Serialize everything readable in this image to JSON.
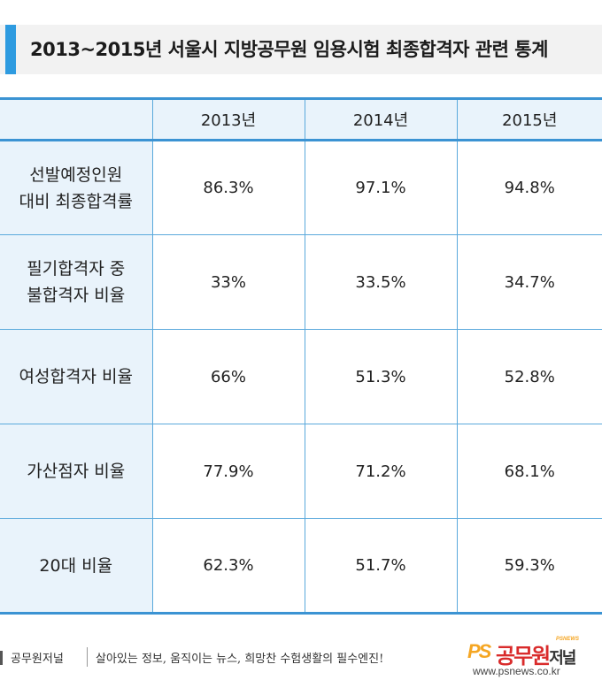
{
  "header": {
    "title": "2013~2015년 서울시 지방공무원 임용시험 최종합격자 관련 통계",
    "accent_color": "#2e9be0"
  },
  "table": {
    "columns": [
      "",
      "2013년",
      "2014년",
      "2015년"
    ],
    "rows": [
      {
        "label": [
          "선발예정인원",
          "대비 최종합격률"
        ],
        "values": [
          "86.3%",
          "97.1%",
          "94.8%"
        ]
      },
      {
        "label": [
          "필기합격자 중",
          "불합격자 비율"
        ],
        "values": [
          "33%",
          "33.5%",
          "34.7%"
        ]
      },
      {
        "label": [
          "여성합격자 비율"
        ],
        "values": [
          "66%",
          "51.3%",
          "52.8%"
        ]
      },
      {
        "label": [
          "가산점자 비율"
        ],
        "values": [
          "77.9%",
          "71.2%",
          "68.1%"
        ]
      },
      {
        "label": [
          "20대 비율"
        ],
        "values": [
          "62.3%",
          "51.7%",
          "59.3%"
        ]
      }
    ],
    "header_bg": "#e9f3fb",
    "border_color": "#5aa9dc"
  },
  "footer": {
    "brand": "공무원저널",
    "slogan": "살아있는 정보, 움직이는 뉴스, 희망찬 수험생활의 필수엔진!",
    "logo_ps": "PS",
    "logo_name_main": "공무원",
    "logo_name_suffix": "저널",
    "logo_tag": "PSNEWS",
    "logo_url": "www.psnews.co.kr"
  }
}
